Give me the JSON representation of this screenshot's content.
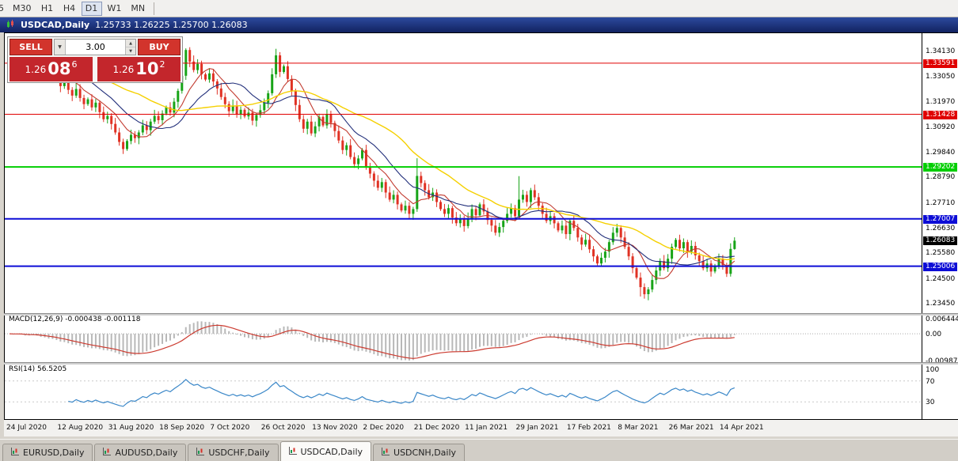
{
  "toolbar": {
    "timeframes": [
      "5",
      "M30",
      "H1",
      "H4",
      "D1",
      "W1",
      "MN"
    ],
    "active": "D1"
  },
  "titlebar": {
    "title": "USDCAD,Daily",
    "ohlc": "1.25733 1.26225 1.25700 1.26083"
  },
  "trade_panel": {
    "sell_label": "SELL",
    "buy_label": "BUY",
    "volume": "3.00",
    "sell_price_base": "1.26",
    "sell_price_pips": "08",
    "sell_price_point": "6",
    "buy_price_base": "1.26",
    "buy_price_pips": "10",
    "buy_price_point": "2"
  },
  "indicators": {
    "macd_name": "MACD(12,26,9)",
    "macd_value": "-0.000438",
    "macd_signal_value": "-0.001118",
    "macd_scale": [
      {
        "text": "0.006444",
        "value": 0.006444
      },
      {
        "text": "0.00",
        "value": 0
      },
      {
        "text": "-0.009871",
        "value": -0.009871
      }
    ],
    "rsi_name": "RSI(14)",
    "rsi_value": "56.5205",
    "rsi_scale": [
      {
        "text": "100",
        "value": 100
      },
      {
        "text": "70",
        "value": 70
      },
      {
        "text": "30",
        "value": 30
      }
    ]
  },
  "price_scale": {
    "ticks": [
      "1.34130",
      "1.33050",
      "1.31970",
      "1.30920",
      "1.29840",
      "1.28790",
      "1.27710",
      "1.26630",
      "1.25580",
      "1.24500",
      "1.23450"
    ]
  },
  "tabs": {
    "items": [
      "EURUSD,Daily",
      "AUDUSD,Daily",
      "USDCHF,Daily",
      "USDCAD,Daily",
      "USDCNH,Daily"
    ],
    "active": "USDCAD,Daily"
  },
  "chart_data": {
    "type": "candlestick",
    "symbol": "USDCAD",
    "timeframe": "Daily",
    "y_axis": {
      "top_price": 1.3459,
      "min_price": 1.2345
    },
    "open_first": 1.343,
    "wick": 0.0022,
    "closes": [
      1.3409,
      1.3382,
      1.3414,
      1.3392,
      1.3356,
      1.339,
      1.3404,
      1.3372,
      1.333,
      1.3346,
      1.3312,
      1.333,
      1.3296,
      1.3262,
      1.3286,
      1.3246,
      1.3222,
      1.325,
      1.3212,
      1.3186,
      1.3206,
      1.3172,
      1.3192,
      1.3152,
      1.3122,
      1.3136,
      1.3102,
      1.3066,
      1.3026,
      1.2996,
      1.303,
      1.3056,
      1.3042,
      1.3066,
      1.3096,
      1.3076,
      1.3112,
      1.3136,
      1.3118,
      1.3146,
      1.3172,
      1.315,
      1.3196,
      1.3242,
      1.3306,
      1.3415,
      1.3366,
      1.333,
      1.3356,
      1.3312,
      1.329,
      1.3316,
      1.3282,
      1.3252,
      1.3216,
      1.3186,
      1.3156,
      1.318,
      1.3144,
      1.3162,
      1.3134,
      1.315,
      1.3116,
      1.314,
      1.316,
      1.3192,
      1.3232,
      1.3312,
      1.3392,
      1.3322,
      1.3346,
      1.3292,
      1.3242,
      1.3182,
      1.3122,
      1.3082,
      1.3112,
      1.3062,
      1.3092,
      1.3132,
      1.3096,
      1.3142,
      1.3106,
      1.3072,
      1.3032,
      1.2992,
      1.3012,
      1.2962,
      1.2932,
      1.2956,
      1.2992,
      1.2922,
      1.2892,
      1.2862,
      1.2832,
      1.2856,
      1.2812,
      1.2782,
      1.2802,
      1.2762,
      1.2736,
      1.2756,
      1.2722,
      1.2742,
      1.2882,
      1.2852,
      1.2822,
      1.2792,
      1.2812,
      1.2772,
      1.2742,
      1.2722,
      1.2746,
      1.2706,
      1.2682,
      1.2702,
      1.267,
      1.2702,
      1.2742,
      1.2716,
      1.2762,
      1.2732,
      1.2696,
      1.2672,
      1.2642,
      1.2666,
      1.2692,
      1.2722,
      1.2746,
      1.2712,
      1.2782,
      1.2802,
      1.2772,
      1.2822,
      1.2792,
      1.2756,
      1.2722,
      1.2692,
      1.2712,
      1.2682,
      1.2652,
      1.2672,
      1.2636,
      1.2692,
      1.2662,
      1.2622,
      1.2592,
      1.2612,
      1.2572,
      1.2542,
      1.2512,
      1.2536,
      1.2562,
      1.2602,
      1.2642,
      1.2662,
      1.2622,
      1.2582,
      1.2542,
      1.2492,
      1.2452,
      1.2412,
      1.2382,
      1.2402,
      1.2442,
      1.2482,
      1.2522,
      1.2492,
      1.2532,
      1.2582,
      1.2612,
      1.2576,
      1.2602,
      1.2562,
      1.2586,
      1.2546,
      1.2522,
      1.2492,
      1.2512,
      1.2478,
      1.2502,
      1.2532,
      1.2505,
      1.2468,
      1.25733,
      1.26083
    ],
    "high_overrides": {
      "2": 1.3459,
      "45": 1.3422,
      "68": 1.342,
      "104": 1.2957,
      "130": 1.2881,
      "185": 1.26225
    },
    "low_overrides": {
      "29": 1.2975,
      "161": 1.2372,
      "162": 1.2363,
      "183": 1.2455,
      "185": 1.257
    },
    "colors": {
      "up": "#18a418",
      "down": "#e03224"
    },
    "moving_averages": [
      {
        "period": 8,
        "color": "#c23a2f",
        "width": 1.1
      },
      {
        "period": 16,
        "color": "#23307b",
        "width": 1.1
      },
      {
        "period": 34,
        "color": "#f5d000",
        "width": 1.4
      }
    ],
    "levels": [
      {
        "label": "1.33591",
        "value": 1.33591,
        "color": "#e00000",
        "line_width": 1
      },
      {
        "label": "1.31428",
        "value": 1.31428,
        "color": "#e00000",
        "line_width": 1
      },
      {
        "label": "1.29202",
        "value": 1.29202,
        "color": "#00ce00",
        "line_width": 2
      },
      {
        "label": "1.27007",
        "value": 1.27007,
        "color": "#0d0dd6",
        "line_width": 2
      },
      {
        "label": "1.25006",
        "value": 1.25006,
        "color": "#0d0dd6",
        "line_width": 2
      }
    ],
    "current_price": 1.26083,
    "current_price_label": "1.26083",
    "macd": {
      "fast": 12,
      "slow": 26,
      "signal": 9,
      "axis_max": 0.006444,
      "axis_min": -0.009871,
      "hist_color": "#b8b8b8",
      "signal_color": "#cc3b30"
    },
    "rsi": {
      "period": 14,
      "levels": [
        70,
        30
      ],
      "color": "#3a87c8"
    },
    "x_labels": [
      {
        "i": 0,
        "label": "24 Jul 2020"
      },
      {
        "i": 13,
        "label": "12 Aug 2020"
      },
      {
        "i": 26,
        "label": "31 Aug 2020"
      },
      {
        "i": 39,
        "label": "18 Sep 2020"
      },
      {
        "i": 52,
        "label": "7 Oct 2020"
      },
      {
        "i": 65,
        "label": "26 Oct 2020"
      },
      {
        "i": 78,
        "label": "13 Nov 2020"
      },
      {
        "i": 91,
        "label": "2 Dec 2020"
      },
      {
        "i": 104,
        "label": "21 Dec 2020"
      },
      {
        "i": 117,
        "label": "11 Jan 2021"
      },
      {
        "i": 130,
        "label": "29 Jan 2021"
      },
      {
        "i": 143,
        "label": "17 Feb 2021"
      },
      {
        "i": 156,
        "label": "8 Mar 2021"
      },
      {
        "i": 169,
        "label": "26 Mar 2021"
      },
      {
        "i": 182,
        "label": "14 Apr 2021"
      }
    ]
  }
}
